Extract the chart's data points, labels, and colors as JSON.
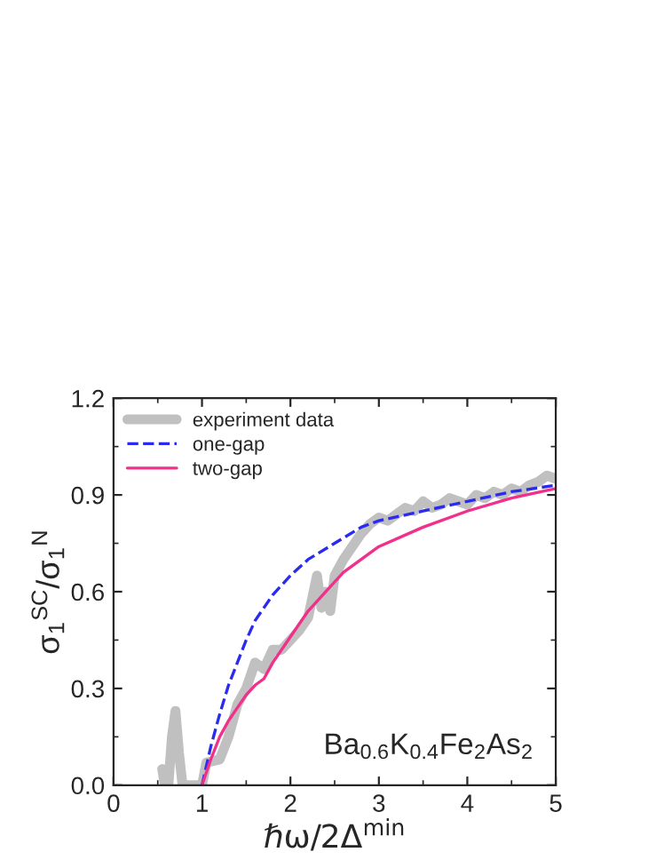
{
  "chart_data": {
    "type": "line",
    "xlabel": "ℏω/2Δ$^{min}$",
    "ylabel": "σ$_{1}$$^{SC}$/σ$_{1}$$^{N}$",
    "xlim": [
      0,
      5
    ],
    "ylim": [
      0.0,
      1.2
    ],
    "xticks": [
      0,
      1,
      2,
      3,
      4,
      5
    ],
    "yticks": [
      {
        "value": 0,
        "label": "0.0"
      },
      0.3,
      0.6,
      0.9,
      1.2
    ],
    "grid": false,
    "legend": "top left",
    "marker": "none",
    "annotations": [
      "Ba$_{0.6}$K$_{0.4}$Fe$_{2}$As$_{2}$"
    ],
    "series": [
      {
        "name": "experiment data",
        "color": "#c0c0c0",
        "line_style": "solid",
        "x": [
          0.55,
          0.58,
          0.62,
          0.66,
          0.7,
          0.74,
          0.78,
          1.0,
          1.05,
          1.2,
          1.3,
          1.4,
          1.5,
          1.6,
          1.7,
          1.8,
          1.9,
          2.0,
          2.1,
          2.2,
          2.3,
          2.35,
          2.4,
          2.45,
          2.5,
          2.6,
          2.7,
          2.8,
          2.9,
          3.0,
          3.1,
          3.2,
          3.3,
          3.4,
          3.5,
          3.6,
          3.7,
          3.8,
          3.9,
          4.0,
          4.1,
          4.2,
          4.3,
          4.4,
          4.5,
          4.6,
          4.7,
          4.8,
          4.9,
          5.0
        ],
        "values": [
          0.05,
          0,
          0,
          0.15,
          0.23,
          0.1,
          0,
          0,
          0.07,
          0.08,
          0.15,
          0.25,
          0.3,
          0.38,
          0.36,
          0.42,
          0.42,
          0.45,
          0.48,
          0.52,
          0.65,
          0.55,
          0.6,
          0.54,
          0.65,
          0.7,
          0.74,
          0.78,
          0.81,
          0.83,
          0.82,
          0.84,
          0.86,
          0.85,
          0.88,
          0.86,
          0.87,
          0.89,
          0.88,
          0.87,
          0.9,
          0.89,
          0.91,
          0.9,
          0.92,
          0.91,
          0.93,
          0.94,
          0.96,
          0.95
        ]
      },
      {
        "name": "one-gap",
        "color": "#2b2bf0",
        "line_style": "dashed",
        "x": [
          1.0,
          1.05,
          1.1,
          1.2,
          1.3,
          1.4,
          1.5,
          1.6,
          1.8,
          2.0,
          2.2,
          2.5,
          2.8,
          3.0,
          3.5,
          4.0,
          4.5,
          5.0
        ],
        "values": [
          0,
          0.06,
          0.12,
          0.22,
          0.31,
          0.38,
          0.45,
          0.51,
          0.59,
          0.65,
          0.7,
          0.75,
          0.8,
          0.82,
          0.85,
          0.88,
          0.91,
          0.93
        ]
      },
      {
        "name": "two-gap",
        "color": "#f0308a",
        "line_style": "solid",
        "x": [
          1.0,
          1.1,
          1.2,
          1.3,
          1.4,
          1.5,
          1.6,
          1.7,
          1.8,
          2.0,
          2.2,
          2.4,
          2.6,
          2.8,
          3.0,
          3.5,
          4.0,
          4.5,
          5.0
        ],
        "values": [
          0,
          0.08,
          0.15,
          0.2,
          0.24,
          0.28,
          0.31,
          0.33,
          0.38,
          0.46,
          0.54,
          0.6,
          0.66,
          0.7,
          0.74,
          0.8,
          0.85,
          0.89,
          0.92
        ]
      }
    ]
  }
}
